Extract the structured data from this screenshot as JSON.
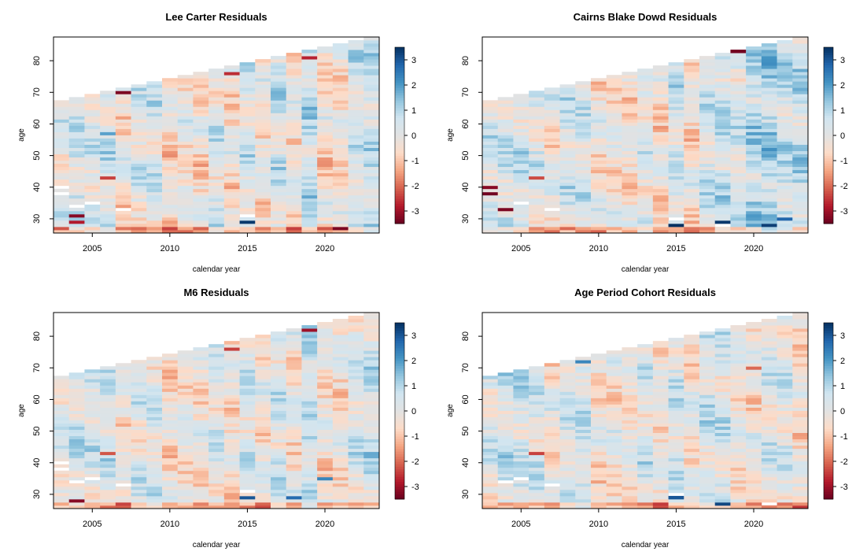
{
  "chart_data": [
    {
      "type": "heatmap",
      "title": "Lee Carter Residuals",
      "xlabel": "calendar year",
      "ylabel": "age",
      "x_range": [
        2002.5,
        2023.5
      ],
      "y_range": [
        25.5,
        87.5
      ],
      "x_ticks": [
        2005,
        2010,
        2015,
        2020
      ],
      "y_ticks": [
        30,
        40,
        50,
        60,
        70,
        80
      ],
      "colorbar_ticks": [
        3,
        2,
        1,
        0,
        -1,
        -2,
        -3
      ],
      "colorbar_range": [
        -3.5,
        3.5
      ],
      "years": [
        2003,
        2004,
        2005,
        2006,
        2007,
        2008,
        2009,
        2010,
        2011,
        2012,
        2013,
        2014,
        2015,
        2016,
        2017,
        2018,
        2019,
        2020,
        2021,
        2022,
        2023
      ],
      "max_age": [
        67,
        68,
        69,
        70,
        71,
        72,
        73,
        74,
        75,
        76,
        77,
        78,
        79,
        80,
        81,
        82,
        83,
        84,
        85,
        86,
        87
      ],
      "year_residual_profile": [
        0.2,
        0.6,
        0.4,
        0.5,
        -0.3,
        0.2,
        0.4,
        -0.6,
        -0.2,
        -0.5,
        0.3,
        -0.4,
        0.4,
        -0.3,
        0.6,
        -0.2,
        0.9,
        -0.5,
        -0.4,
        0.5,
        0.8
      ],
      "notable_cells": [
        {
          "year": 2003,
          "age": 27,
          "value": -2.2
        },
        {
          "year": 2004,
          "age": 29,
          "value": -2.8
        },
        {
          "year": 2004,
          "age": 31,
          "value": -3.2
        },
        {
          "year": 2006,
          "age": 43,
          "value": -2.4
        },
        {
          "year": 2006,
          "age": 57,
          "value": 1.9
        },
        {
          "year": 2007,
          "age": 70,
          "value": -3.3
        },
        {
          "year": 2014,
          "age": 76,
          "value": -2.6
        },
        {
          "year": 2015,
          "age": 29,
          "value": 3.4
        },
        {
          "year": 2019,
          "age": 81,
          "value": -2.7
        },
        {
          "year": 2021,
          "age": 27,
          "value": -3.3
        }
      ],
      "missing_cells": [
        {
          "year": 2003,
          "age": 38
        },
        {
          "year": 2003,
          "age": 40
        },
        {
          "year": 2004,
          "age": 34
        },
        {
          "year": 2005,
          "age": 35
        },
        {
          "year": 2007,
          "age": 33
        },
        {
          "year": 2015,
          "age": 31
        }
      ]
    },
    {
      "type": "heatmap",
      "title": "Cairns Blake Dowd Residuals",
      "xlabel": "calendar year",
      "ylabel": "age",
      "x_range": [
        2002.5,
        2023.5
      ],
      "y_range": [
        25.5,
        87.5
      ],
      "x_ticks": [
        2005,
        2010,
        2015,
        2020
      ],
      "y_ticks": [
        30,
        40,
        50,
        60,
        70,
        80
      ],
      "colorbar_ticks": [
        3,
        2,
        1,
        0,
        -1,
        -2,
        -3
      ],
      "colorbar_range": [
        -3.5,
        3.5
      ],
      "years": [
        2003,
        2004,
        2005,
        2006,
        2007,
        2008,
        2009,
        2010,
        2011,
        2012,
        2013,
        2014,
        2015,
        2016,
        2017,
        2018,
        2019,
        2020,
        2021,
        2022,
        2023
      ],
      "max_age": [
        67,
        68,
        69,
        70,
        71,
        72,
        73,
        74,
        75,
        76,
        77,
        78,
        79,
        80,
        81,
        82,
        83,
        84,
        85,
        86,
        87
      ],
      "year_residual_profile": [
        0.4,
        0.5,
        0.6,
        0.3,
        -0.2,
        0.5,
        0.4,
        -0.3,
        -0.3,
        -0.4,
        0.2,
        -0.5,
        0.5,
        -0.4,
        0.6,
        0.8,
        0.4,
        1.1,
        1.3,
        0.9,
        0.9
      ],
      "notable_cells": [
        {
          "year": 2003,
          "age": 38,
          "value": -3.4
        },
        {
          "year": 2003,
          "age": 40,
          "value": -3.2
        },
        {
          "year": 2004,
          "age": 33,
          "value": -3.3
        },
        {
          "year": 2006,
          "age": 43,
          "value": -2.3
        },
        {
          "year": 2015,
          "age": 28,
          "value": 3.5
        },
        {
          "year": 2018,
          "age": 29,
          "value": 3.4
        },
        {
          "year": 2019,
          "age": 83,
          "value": -3.4
        },
        {
          "year": 2021,
          "age": 28,
          "value": 3.3
        },
        {
          "year": 2022,
          "age": 30,
          "value": 2.8
        }
      ],
      "missing_cells": [
        {
          "year": 2005,
          "age": 35
        },
        {
          "year": 2007,
          "age": 33
        },
        {
          "year": 2015,
          "age": 30
        },
        {
          "year": 2018,
          "age": 28
        }
      ]
    },
    {
      "type": "heatmap",
      "title": "M6 Residuals",
      "xlabel": "calendar year",
      "ylabel": "age",
      "x_range": [
        2002.5,
        2023.5
      ],
      "y_range": [
        25.5,
        87.5
      ],
      "x_ticks": [
        2005,
        2010,
        2015,
        2020
      ],
      "y_ticks": [
        30,
        40,
        50,
        60,
        70,
        80
      ],
      "colorbar_ticks": [
        3,
        2,
        1,
        0,
        -1,
        -2,
        -3
      ],
      "colorbar_range": [
        -3.5,
        3.5
      ],
      "years": [
        2003,
        2004,
        2005,
        2006,
        2007,
        2008,
        2009,
        2010,
        2011,
        2012,
        2013,
        2014,
        2015,
        2016,
        2017,
        2018,
        2019,
        2020,
        2021,
        2022,
        2023
      ],
      "max_age": [
        67,
        68,
        69,
        70,
        71,
        72,
        73,
        74,
        75,
        76,
        77,
        78,
        79,
        80,
        81,
        82,
        83,
        84,
        85,
        86,
        87
      ],
      "year_residual_profile": [
        0.1,
        0.5,
        0.4,
        0.5,
        -0.3,
        0.2,
        0.3,
        -0.5,
        -0.2,
        -0.4,
        0.3,
        -0.4,
        0.4,
        -0.3,
        0.5,
        -0.2,
        0.8,
        -0.4,
        -0.3,
        0.4,
        0.7
      ],
      "notable_cells": [
        {
          "year": 2004,
          "age": 28,
          "value": -3.2
        },
        {
          "year": 2006,
          "age": 43,
          "value": -2.2
        },
        {
          "year": 2014,
          "age": 76,
          "value": -2.4
        },
        {
          "year": 2015,
          "age": 29,
          "value": 3.0
        },
        {
          "year": 2018,
          "age": 29,
          "value": 2.7
        },
        {
          "year": 2019,
          "age": 82,
          "value": -3.0
        },
        {
          "year": 2020,
          "age": 35,
          "value": 2.3
        }
      ],
      "missing_cells": [
        {
          "year": 2003,
          "age": 38
        },
        {
          "year": 2003,
          "age": 40
        },
        {
          "year": 2004,
          "age": 34
        },
        {
          "year": 2005,
          "age": 35
        },
        {
          "year": 2007,
          "age": 33
        },
        {
          "year": 2015,
          "age": 31
        }
      ]
    },
    {
      "type": "heatmap",
      "title": "Age Period Cohort Residuals",
      "xlabel": "calendar year",
      "ylabel": "age",
      "x_range": [
        2002.5,
        2023.5
      ],
      "y_range": [
        25.5,
        87.5
      ],
      "x_ticks": [
        2005,
        2010,
        2015,
        2020
      ],
      "y_ticks": [
        30,
        40,
        50,
        60,
        70,
        80
      ],
      "colorbar_ticks": [
        3,
        2,
        1,
        0,
        -1,
        -2,
        -3
      ],
      "colorbar_range": [
        -3.5,
        3.5
      ],
      "years": [
        2003,
        2004,
        2005,
        2006,
        2007,
        2008,
        2009,
        2010,
        2011,
        2012,
        2013,
        2014,
        2015,
        2016,
        2017,
        2018,
        2019,
        2020,
        2021,
        2022,
        2023
      ],
      "max_age": [
        67,
        68,
        69,
        70,
        71,
        72,
        73,
        74,
        75,
        76,
        77,
        78,
        79,
        80,
        81,
        82,
        83,
        84,
        85,
        86,
        87
      ],
      "year_residual_profile": [
        0.2,
        0.6,
        0.5,
        0.4,
        -0.3,
        0.3,
        0.6,
        -0.4,
        -0.2,
        -0.3,
        0.4,
        -0.3,
        0.5,
        -0.3,
        0.5,
        0.4,
        -0.2,
        -0.3,
        0.3,
        0.2,
        -0.5
      ],
      "notable_cells": [
        {
          "year": 2004,
          "age": 69,
          "value": 2.4
        },
        {
          "year": 2006,
          "age": 43,
          "value": -2.4
        },
        {
          "year": 2009,
          "age": 72,
          "value": 2.3
        },
        {
          "year": 2015,
          "age": 29,
          "value": 3.0
        },
        {
          "year": 2018,
          "age": 27,
          "value": 3.2
        },
        {
          "year": 2020,
          "age": 70,
          "value": -2.0
        }
      ],
      "missing_cells": [
        {
          "year": 2004,
          "age": 34
        },
        {
          "year": 2005,
          "age": 35
        },
        {
          "year": 2007,
          "age": 33
        },
        {
          "year": 2015,
          "age": 30
        },
        {
          "year": 2021,
          "age": 27
        }
      ]
    }
  ]
}
